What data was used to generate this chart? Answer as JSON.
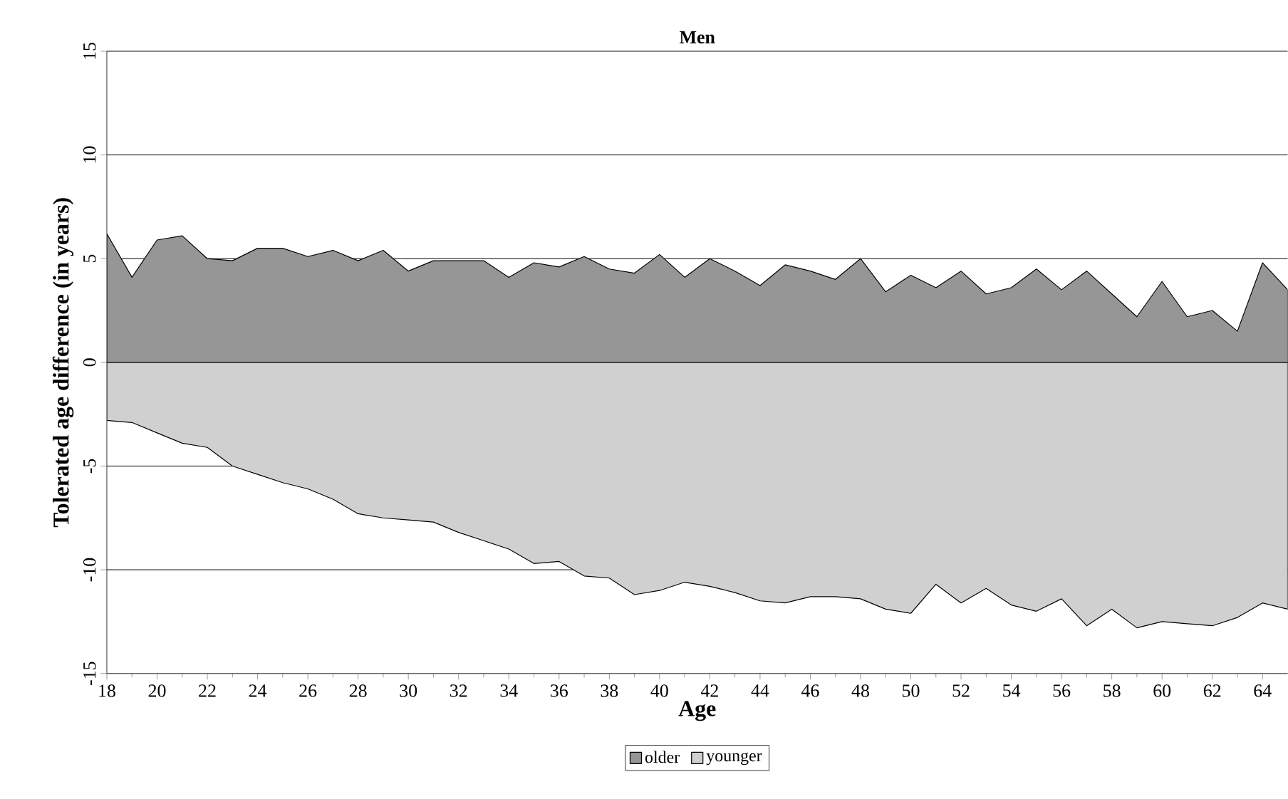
{
  "chart_data": {
    "type": "area",
    "title": "Men",
    "xlabel": "Age",
    "ylabel": "Tolerated age difference (in years)",
    "x": [
      18,
      19,
      20,
      21,
      22,
      23,
      24,
      25,
      26,
      27,
      28,
      29,
      30,
      31,
      32,
      33,
      34,
      35,
      36,
      37,
      38,
      39,
      40,
      41,
      42,
      43,
      44,
      45,
      46,
      47,
      48,
      49,
      50,
      51,
      52,
      53,
      54,
      55,
      56,
      57,
      58,
      59,
      60,
      61,
      62,
      63,
      64,
      65
    ],
    "series": [
      {
        "name": "older",
        "color": "#969696",
        "values": [
          6.2,
          4.1,
          5.9,
          6.1,
          5.0,
          4.9,
          5.5,
          5.5,
          5.1,
          5.4,
          4.9,
          5.4,
          4.4,
          4.9,
          4.9,
          4.9,
          4.1,
          4.8,
          4.6,
          5.1,
          4.5,
          4.3,
          5.2,
          4.1,
          5.0,
          4.4,
          3.7,
          4.7,
          4.4,
          4.0,
          5.0,
          3.4,
          4.2,
          3.6,
          4.4,
          3.3,
          3.6,
          4.5,
          3.5,
          4.4,
          3.3,
          2.2,
          3.9,
          2.2,
          2.5,
          1.5,
          4.8,
          3.5
        ]
      },
      {
        "name": "younger",
        "color": "#d0d0d0",
        "values": [
          -2.8,
          -2.9,
          -3.4,
          -3.9,
          -4.1,
          -5.0,
          -5.4,
          -5.8,
          -6.1,
          -6.6,
          -7.3,
          -7.5,
          -7.6,
          -7.7,
          -8.2,
          -8.6,
          -9.0,
          -9.7,
          -9.6,
          -10.3,
          -10.4,
          -11.2,
          -11.0,
          -10.6,
          -10.8,
          -11.1,
          -11.5,
          -11.6,
          -11.3,
          -11.3,
          -11.4,
          -11.9,
          -12.1,
          -10.7,
          -11.6,
          -10.9,
          -11.7,
          -12.0,
          -11.4,
          -12.7,
          -11.9,
          -12.8,
          -12.5,
          -12.6,
          -12.7,
          -12.3,
          -11.6,
          -11.9
        ]
      }
    ],
    "xlim": [
      18,
      65
    ],
    "xticks": [
      18,
      20,
      22,
      24,
      26,
      28,
      30,
      32,
      34,
      36,
      38,
      40,
      42,
      44,
      46,
      48,
      50,
      52,
      54,
      56,
      58,
      60,
      62,
      64
    ],
    "ylim": [
      -15,
      15
    ],
    "yticks": [
      -15,
      -10,
      -5,
      0,
      5,
      10,
      15
    ],
    "grid": "y",
    "legend": "bottom"
  }
}
